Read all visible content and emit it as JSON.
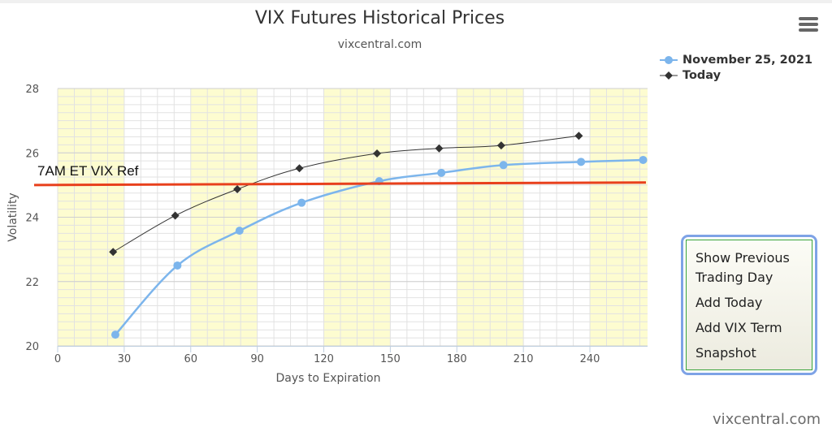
{
  "header": {
    "title": "VIX Futures Historical Prices",
    "subtitle": "vixcentral.com"
  },
  "menu": {
    "icon": "hamburger-menu-icon"
  },
  "side_panel": {
    "links": [
      {
        "label": "Show Previous Trading Day"
      },
      {
        "label": "Add Today"
      },
      {
        "label": "Add VIX Term"
      },
      {
        "label": "Snapshot"
      }
    ]
  },
  "credit": "vixcentral.com",
  "colors": {
    "series_nov25": "#7cb5ec",
    "series_today": "#333333",
    "reference_line": "#e8401c",
    "shaded_band": "#fdfcd0",
    "panel_border": "#7ea3e6"
  },
  "chart_data": {
    "type": "line",
    "title": "VIX Futures Historical Prices",
    "subtitle": "vixcentral.com",
    "xlabel": "Days to Expiration",
    "ylabel": "Volatility",
    "xlim": [
      0,
      266
    ],
    "ylim": [
      20,
      28
    ],
    "x_ticks": [
      0,
      30,
      60,
      90,
      120,
      150,
      180,
      210,
      240
    ],
    "y_ticks": [
      20,
      22,
      24,
      26,
      28
    ],
    "grid": true,
    "alternating_shaded_bands_every": 30,
    "legend_position": "top-right",
    "series": [
      {
        "name": "November 25, 2021",
        "marker": "circle",
        "smooth": true,
        "x": [
          26,
          54,
          82,
          110,
          145,
          173,
          201,
          236,
          264
        ],
        "y": [
          20.35,
          22.5,
          23.58,
          24.45,
          25.12,
          25.38,
          25.62,
          25.72,
          25.78
        ]
      },
      {
        "name": "Today",
        "marker": "diamond",
        "smooth": true,
        "x": [
          25,
          53,
          81,
          109,
          144,
          172,
          200,
          235
        ],
        "y": [
          22.92,
          24.05,
          24.87,
          25.52,
          25.98,
          26.14,
          26.23,
          26.53
        ]
      }
    ],
    "reference_line": {
      "label": "7AM ET VIX Ref",
      "y": [
        25.0,
        25.08
      ]
    }
  }
}
